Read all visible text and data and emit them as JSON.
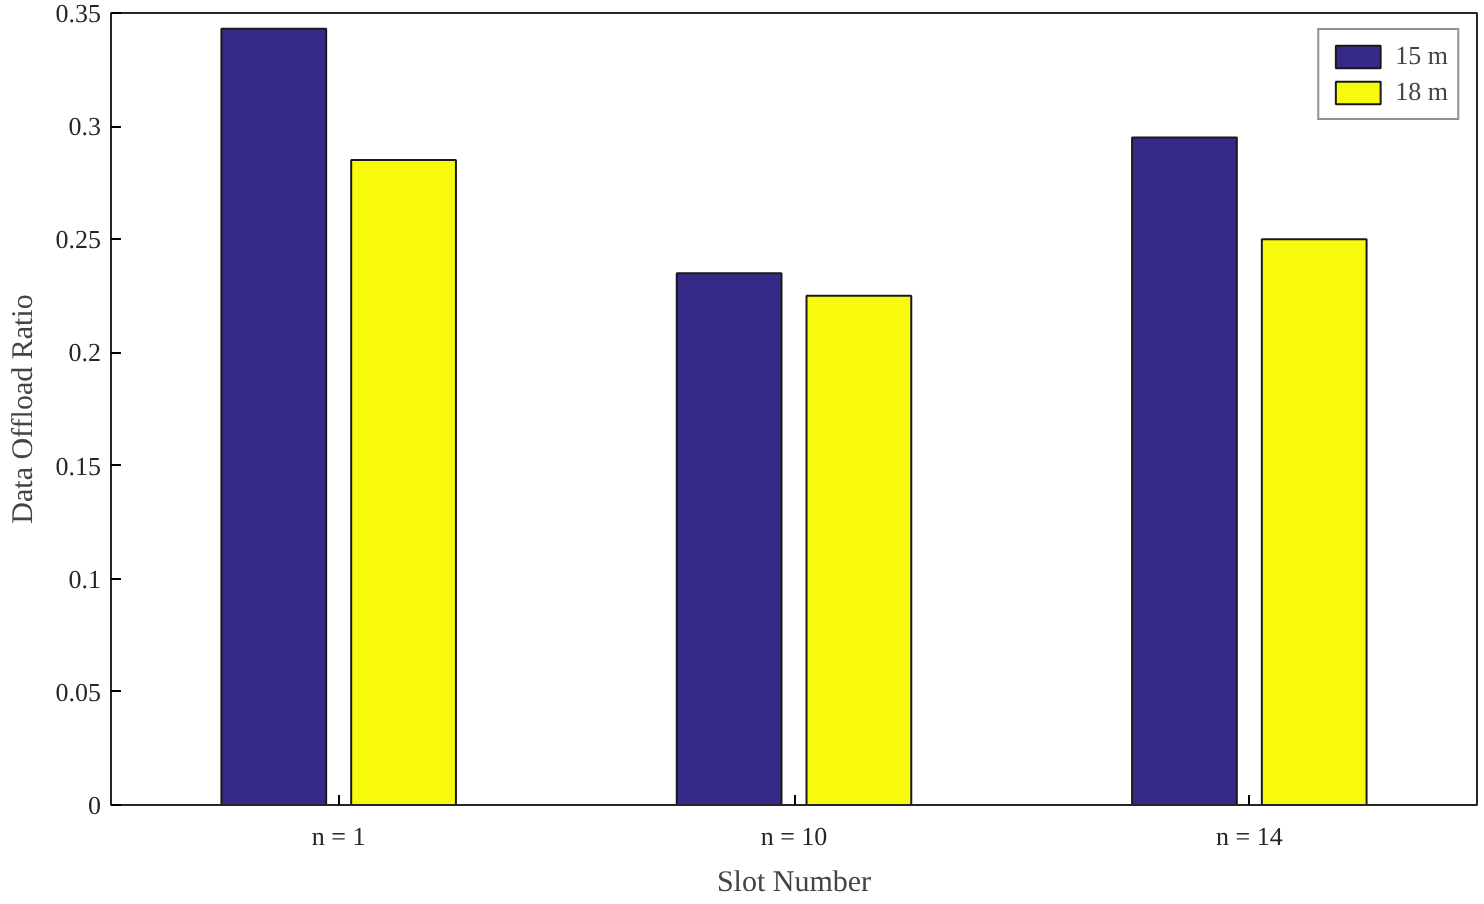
{
  "chart_data": {
    "type": "bar",
    "xlabel": "Slot Number",
    "ylabel": "Data Offload Ratio",
    "categories": [
      "n = 1",
      "n = 10",
      "n = 14"
    ],
    "series": [
      {
        "name": "15 m",
        "color": "#352a87",
        "values": [
          0.343,
          0.235,
          0.295
        ]
      },
      {
        "name": "18 m",
        "color": "#f8fa0d",
        "values": [
          0.285,
          0.225,
          0.25
        ]
      }
    ],
    "ylim": [
      0,
      0.35
    ],
    "yticks": [
      0,
      0.05,
      0.1,
      0.15,
      0.2,
      0.25,
      0.3,
      0.35
    ],
    "grid": false,
    "legend": "top right"
  }
}
